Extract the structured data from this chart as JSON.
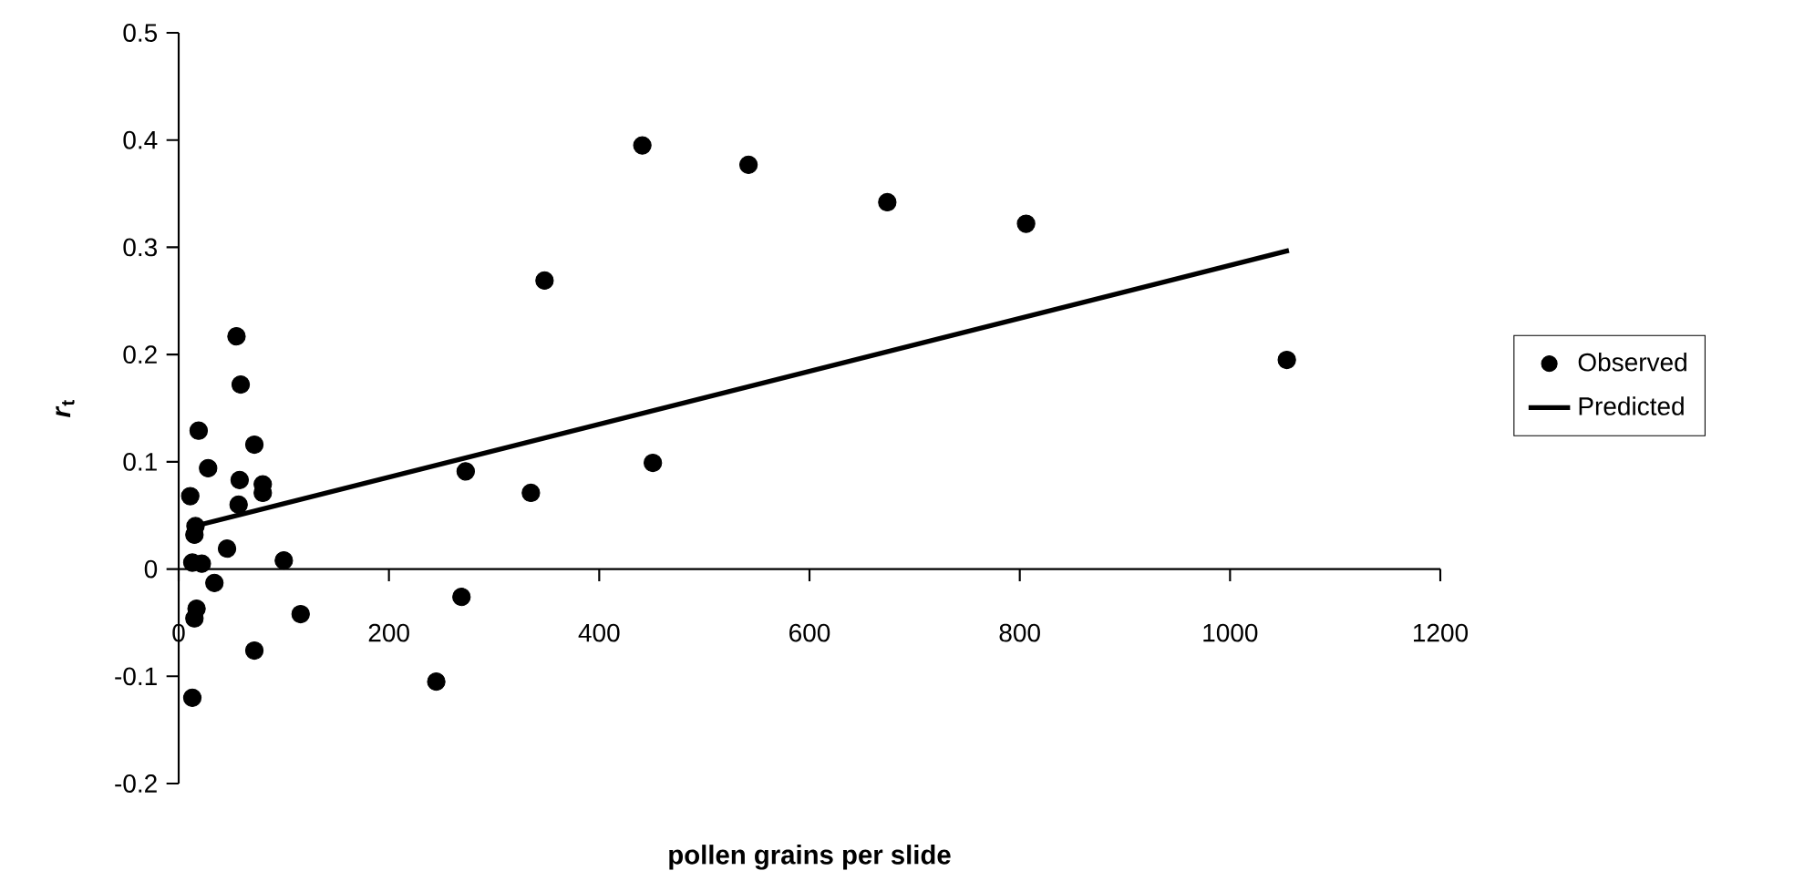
{
  "chart_data": {
    "type": "scatter",
    "xlabel": "pollen grains per slide",
    "ylabel": "*r*$_{t}$",
    "xlim": [
      0,
      1200
    ],
    "xticks": [
      0,
      200,
      400,
      600,
      800,
      1000,
      1200
    ],
    "ylim": [
      -0.2,
      0.5
    ],
    "yticks": [
      -0.2,
      -0.1,
      0,
      0.1,
      0.2,
      0.3,
      0.4,
      0.5
    ],
    "grid": false,
    "legend": "right",
    "series": [
      {
        "name": "Observed",
        "marker": "circle",
        "color": "#000000",
        "x": [
          11,
          13,
          16,
          15,
          22,
          17,
          15,
          13,
          19,
          28,
          34,
          46,
          55,
          59,
          58,
          57,
          72,
          72,
          80,
          80,
          100,
          116,
          245,
          269,
          273,
          335,
          348,
          441,
          451,
          542,
          674,
          806,
          1054
        ],
        "values": [
          0.068,
          0.006,
          0.04,
          0.032,
          0.005,
          -0.037,
          -0.046,
          -0.12,
          0.129,
          0.094,
          -0.013,
          0.019,
          0.217,
          0.172,
          0.083,
          0.06,
          0.116,
          -0.076,
          0.079,
          0.071,
          0.008,
          -0.042,
          -0.105,
          -0.026,
          0.091,
          0.071,
          0.269,
          0.395,
          0.099,
          0.377,
          0.342,
          0.322,
          0.195
        ]
      },
      {
        "name": "Predicted",
        "type": "line",
        "marker": "none",
        "color": "#000000",
        "line_style": "solid",
        "x": [
          15,
          1056
        ],
        "values": [
          0.04,
          0.297
        ]
      }
    ]
  }
}
